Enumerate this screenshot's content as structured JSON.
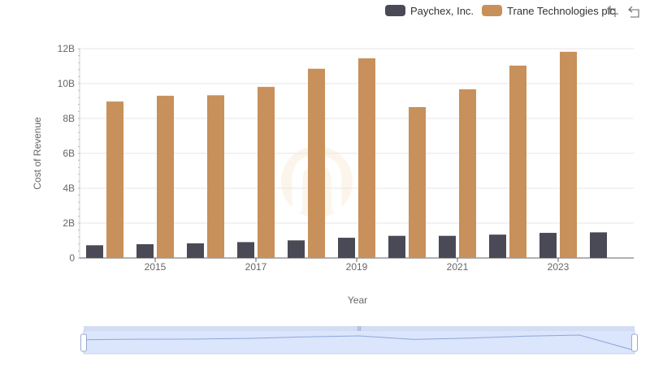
{
  "chart_data": {
    "type": "bar",
    "title": "",
    "xlabel": "Year",
    "ylabel": "Cost of Revenue",
    "ylim": [
      0,
      12000000000
    ],
    "y_ticks": [
      {
        "value": 0,
        "label": "0"
      },
      {
        "value": 2000000000,
        "label": "2B"
      },
      {
        "value": 4000000000,
        "label": "4B"
      },
      {
        "value": 6000000000,
        "label": "6B"
      },
      {
        "value": 8000000000,
        "label": "8B"
      },
      {
        "value": 10000000000,
        "label": "10B"
      },
      {
        "value": 12000000000,
        "label": "12B"
      }
    ],
    "categories": [
      "2014",
      "2015",
      "2016",
      "2017",
      "2018",
      "2019",
      "2020",
      "2021",
      "2022",
      "2023",
      "2024"
    ],
    "x_tick_labels": [
      "2015",
      "2017",
      "2019",
      "2021",
      "2023"
    ],
    "series": [
      {
        "name": "Paychex, Inc.",
        "color": "#4a4a56",
        "values": [
          730000000,
          790000000,
          840000000,
          910000000,
          1010000000,
          1160000000,
          1270000000,
          1270000000,
          1340000000,
          1440000000,
          1470000000
        ]
      },
      {
        "name": "Trane Technologies plc",
        "color": "#c8905a",
        "values": [
          8970000000,
          9300000000,
          9330000000,
          9810000000,
          10850000000,
          11450000000,
          8650000000,
          9670000000,
          11030000000,
          11820000000,
          null
        ]
      }
    ],
    "legend_position": "top-right",
    "grid": true,
    "data_zoom": {
      "start_percent": 0,
      "end_percent": 100
    }
  },
  "legend": {
    "items": [
      {
        "label": "Paychex, Inc.",
        "color": "#4a4a56"
      },
      {
        "label": "Trane Technologies plc",
        "color": "#c8905a"
      }
    ]
  },
  "toolbox": {
    "icons": [
      "zoom-icon",
      "restore-icon"
    ]
  }
}
